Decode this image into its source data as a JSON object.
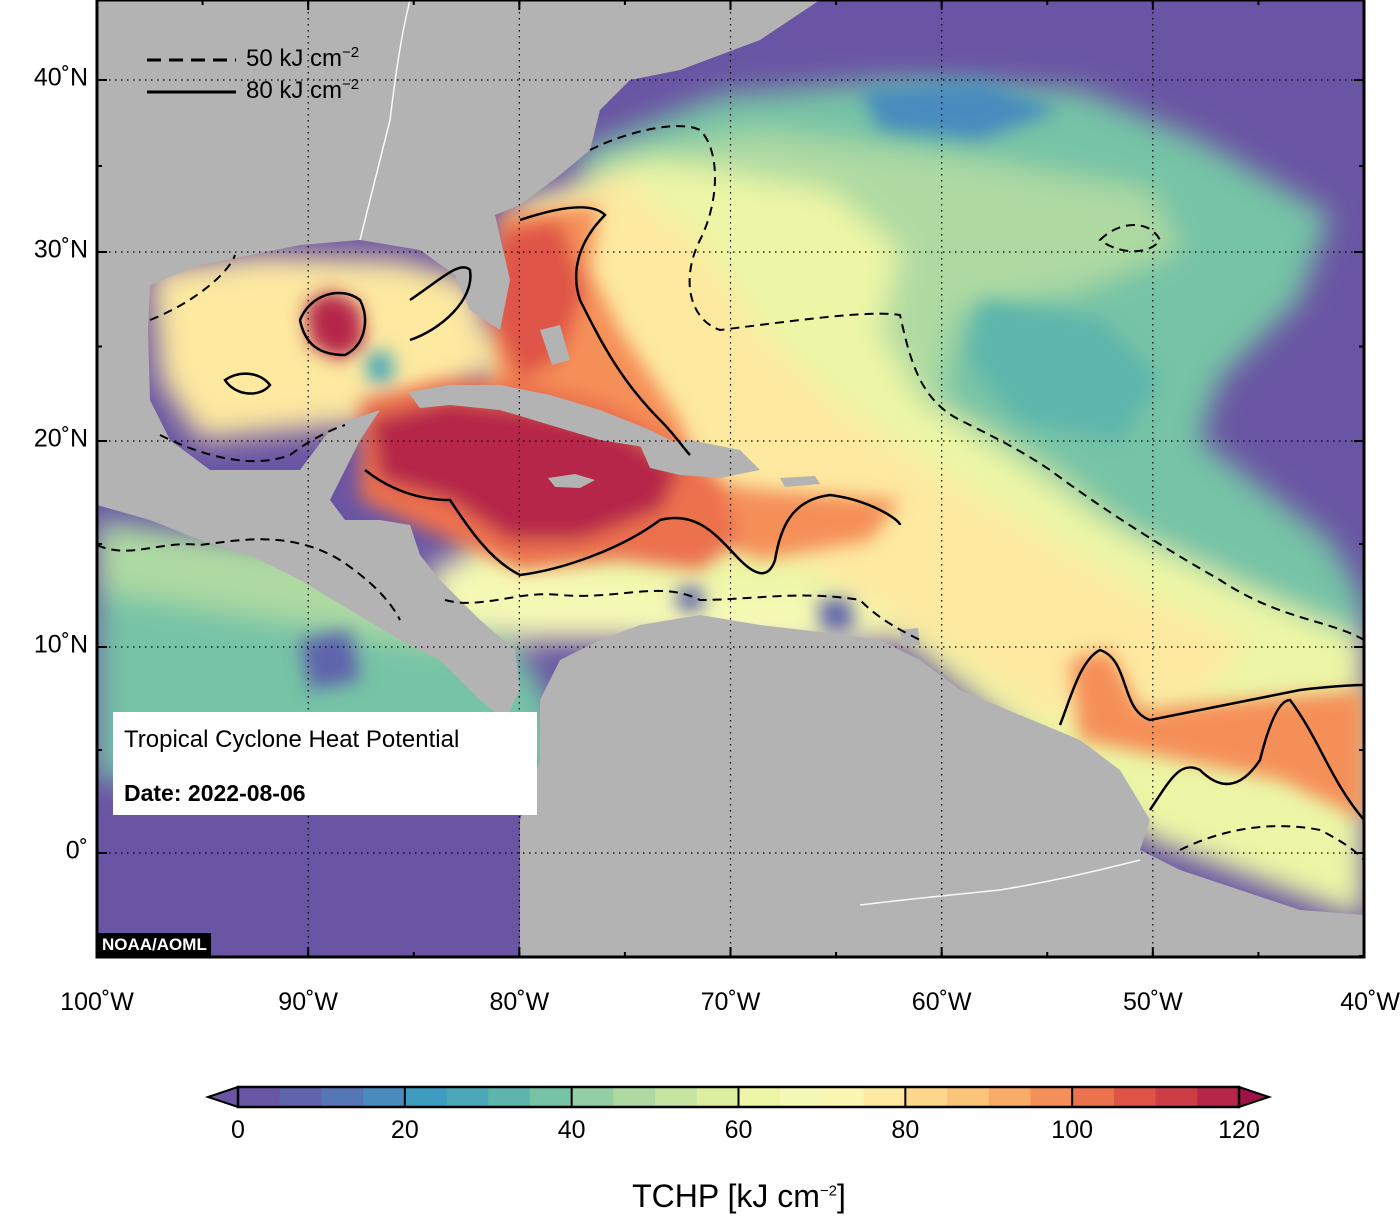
{
  "map": {
    "title": "Tropical Cyclone Heat Potential",
    "date_label": "Date: 2022-08-06",
    "credit": "NOAA/AOML",
    "extent": {
      "lon_min": -100,
      "lon_max": -40,
      "lat_min": -5,
      "lat_max": 44
    },
    "lat_ticks": [
      {
        "value": 40,
        "label": "40˚N"
      },
      {
        "value": 30,
        "label": "30˚N"
      },
      {
        "value": 20,
        "label": "20˚N"
      },
      {
        "value": 10,
        "label": "10˚N"
      },
      {
        "value": 0,
        "label": "0˚"
      }
    ],
    "lon_ticks": [
      {
        "value": -100,
        "label": "100˚W"
      },
      {
        "value": -90,
        "label": "90˚W"
      },
      {
        "value": -80,
        "label": "80˚W"
      },
      {
        "value": -70,
        "label": "70˚W"
      },
      {
        "value": -60,
        "label": "60˚W"
      },
      {
        "value": -50,
        "label": "50˚W"
      },
      {
        "value": -40,
        "label": "40˚W"
      }
    ],
    "land_color": "#b3b3b3",
    "grid": "dotted"
  },
  "legend": {
    "items": [
      {
        "style": "dashed",
        "label": "50 kJ cm",
        "exponent": "−2",
        "value": 50
      },
      {
        "style": "solid",
        "label": "80 kJ cm",
        "exponent": "−2",
        "value": 80
      }
    ]
  },
  "colorbar": {
    "title": "TCHP [kJ cm",
    "title_exponent": "−2",
    "title_close": "]",
    "min": 0,
    "max": 120,
    "step": 5,
    "ticks": [
      "0",
      "20",
      "40",
      "60",
      "80",
      "100",
      "120"
    ],
    "colors": [
      "#6a55a4",
      "#5f64ac",
      "#5577b5",
      "#4a8bbe",
      "#3f9cc1",
      "#4aa8b8",
      "#5db5ac",
      "#76c3a6",
      "#93cfa3",
      "#aedaa2",
      "#c6e5a0",
      "#dcefa0",
      "#ecf6a6",
      "#f6f9b5",
      "#fbf7b3",
      "#fde9a0",
      "#fdd88c",
      "#fcc47a",
      "#f9ab68",
      "#f58f59",
      "#ec714d",
      "#df5446",
      "#cc3d46",
      "#b62648"
    ],
    "under_color": "#6a55a4",
    "over_color": "#9e1347"
  }
}
